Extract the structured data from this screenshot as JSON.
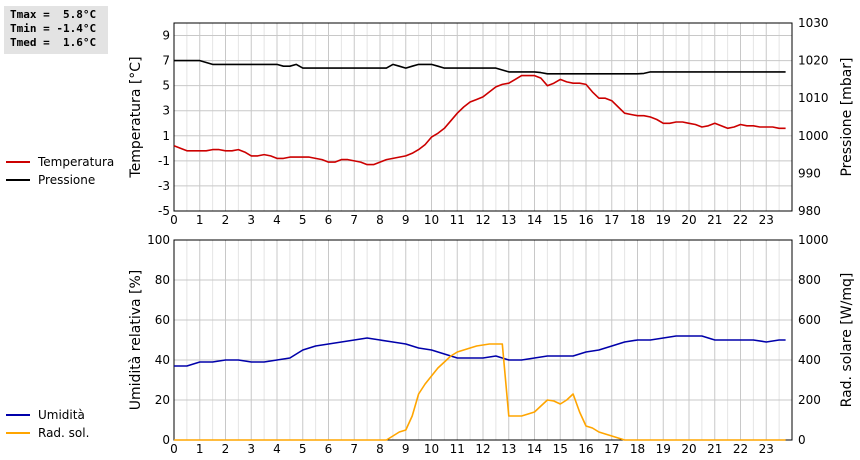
{
  "stats": {
    "tmax": "Tmax =  5.8°C",
    "tmin": "Tmin = -1.4°C",
    "tmed": "Tmed =  1.6°C"
  },
  "legend_top": [
    {
      "label": "Temperatura",
      "color": "#cc0000"
    },
    {
      "label": "Pressione",
      "color": "#000000"
    }
  ],
  "legend_bottom": [
    {
      "label": "Umidità",
      "color": "#0000aa"
    },
    {
      "label": "Rad. sol.",
      "color": "#ffa500"
    }
  ],
  "chart_data": [
    {
      "type": "line",
      "ylabel": "Temperatura [°C]",
      "y2label": "Pressione [mbar]",
      "xlim": [
        0,
        24
      ],
      "ylim": [
        -5,
        10
      ],
      "y2lim": [
        980,
        1030
      ],
      "x_ticks": [
        "0",
        "1",
        "2",
        "3",
        "4",
        "5",
        "6",
        "7",
        "8",
        "9",
        "10",
        "11",
        "12",
        "13",
        "14",
        "15",
        "16",
        "17",
        "18",
        "19",
        "20",
        "21",
        "22",
        "23"
      ],
      "y_ticks": [
        "-5",
        "-3",
        "-1",
        "1",
        "3",
        "5",
        "7",
        "9"
      ],
      "y2_ticks": [
        "980",
        "990",
        "1000",
        "1010",
        "1020",
        "1030"
      ],
      "grid": true,
      "series": [
        {
          "name": "Temperatura",
          "axis": "left",
          "color": "#cc0000",
          "x": [
            0,
            0.25,
            0.5,
            0.75,
            1,
            1.25,
            1.5,
            1.75,
            2,
            2.25,
            2.5,
            2.75,
            3,
            3.25,
            3.5,
            3.75,
            4,
            4.25,
            4.5,
            4.75,
            5,
            5.25,
            5.5,
            5.75,
            6,
            6.25,
            6.5,
            6.75,
            7,
            7.25,
            7.5,
            7.75,
            8,
            8.25,
            8.5,
            8.75,
            9,
            9.25,
            9.5,
            9.75,
            10,
            10.25,
            10.5,
            10.75,
            11,
            11.25,
            11.5,
            11.75,
            12,
            12.25,
            12.5,
            12.75,
            13,
            13.25,
            13.5,
            13.75,
            14,
            14.25,
            14.5,
            14.75,
            15,
            15.25,
            15.5,
            15.75,
            16,
            16.25,
            16.5,
            16.75,
            17,
            17.25,
            17.5,
            17.75,
            18,
            18.25,
            18.5,
            18.75,
            19,
            19.25,
            19.5,
            19.75,
            20,
            20.25,
            20.5,
            20.75,
            21,
            21.25,
            21.5,
            21.75,
            22,
            22.25,
            22.5,
            22.75,
            23,
            23.25,
            23.5,
            23.75
          ],
          "values": [
            0.2,
            0,
            -0.2,
            -0.2,
            -0.2,
            -0.2,
            -0.1,
            -0.1,
            -0.2,
            -0.2,
            -0.1,
            -0.3,
            -0.6,
            -0.6,
            -0.5,
            -0.6,
            -0.8,
            -0.8,
            -0.7,
            -0.7,
            -0.7,
            -0.7,
            -0.8,
            -0.9,
            -1.1,
            -1.1,
            -0.9,
            -0.9,
            -1,
            -1.1,
            -1.3,
            -1.3,
            -1.1,
            -0.9,
            -0.8,
            -0.7,
            -0.6,
            -0.4,
            -0.1,
            0.3,
            0.9,
            1.2,
            1.6,
            2.2,
            2.8,
            3.3,
            3.7,
            3.9,
            4.1,
            4.5,
            4.9,
            5.1,
            5.2,
            5.5,
            5.8,
            5.8,
            5.8,
            5.6,
            5,
            5.2,
            5.5,
            5.3,
            5.2,
            5.2,
            5.1,
            4.5,
            4,
            4,
            3.8,
            3.3,
            2.8,
            2.7,
            2.6,
            2.6,
            2.5,
            2.3,
            2,
            2,
            2.1,
            2.1,
            2,
            1.9,
            1.7,
            1.8,
            2,
            1.8,
            1.6,
            1.7,
            1.9,
            1.8,
            1.8,
            1.7,
            1.7,
            1.7,
            1.6,
            1.6
          ]
        },
        {
          "name": "Pressione",
          "axis": "right",
          "color": "#000000",
          "x": [
            0,
            1,
            1.25,
            1.5,
            2,
            3,
            3.5,
            4,
            4.25,
            4.5,
            4.75,
            5,
            6,
            7,
            8,
            8.25,
            8.5,
            8.75,
            9,
            9.25,
            9.5,
            10,
            10.25,
            10.5,
            11,
            12,
            12.25,
            12.5,
            13,
            13.25,
            13.5,
            14,
            14.25,
            14.5,
            15,
            16,
            17,
            18,
            18.25,
            18.5,
            19,
            20,
            21,
            22,
            23,
            23.75
          ],
          "values": [
            1020,
            1020,
            1019.5,
            1019,
            1019,
            1019,
            1019,
            1019,
            1018.5,
            1018.5,
            1019,
            1018,
            1018,
            1018,
            1018,
            1018,
            1019,
            1018.5,
            1018,
            1018.5,
            1019,
            1019,
            1018.5,
            1018,
            1018,
            1018,
            1018,
            1018,
            1017,
            1017,
            1017,
            1017,
            1016.8,
            1016.5,
            1016.5,
            1016.5,
            1016.5,
            1016.5,
            1016.6,
            1017,
            1017,
            1017,
            1017,
            1017,
            1017,
            1017
          ]
        }
      ]
    },
    {
      "type": "line",
      "ylabel": "Umidità relativa [%]",
      "y2label": "Rad. solare [W/mq]",
      "xlim": [
        0,
        24
      ],
      "ylim": [
        0,
        100
      ],
      "y2lim": [
        0,
        1000
      ],
      "x_ticks": [
        "0",
        "1",
        "2",
        "3",
        "4",
        "5",
        "6",
        "7",
        "8",
        "9",
        "10",
        "11",
        "12",
        "13",
        "14",
        "15",
        "16",
        "17",
        "18",
        "19",
        "20",
        "21",
        "22",
        "23"
      ],
      "y_ticks": [
        "0",
        "20",
        "40",
        "60",
        "80",
        "100"
      ],
      "y2_ticks": [
        "0",
        "200",
        "400",
        "600",
        "800",
        "1000"
      ],
      "grid": true,
      "series": [
        {
          "name": "Umidità",
          "axis": "left",
          "color": "#0000aa",
          "x": [
            0,
            0.5,
            1,
            1.5,
            2,
            2.5,
            3,
            3.5,
            4,
            4.5,
            5,
            5.5,
            6,
            6.5,
            7,
            7.5,
            8,
            8.5,
            9,
            9.5,
            10,
            10.5,
            11,
            11.5,
            12,
            12.5,
            13,
            13.5,
            14,
            14.5,
            15,
            15.5,
            16,
            16.5,
            17,
            17.5,
            18,
            18.5,
            19,
            19.5,
            20,
            20.5,
            21,
            21.5,
            22,
            22.5,
            23,
            23.5,
            23.75
          ],
          "values": [
            37,
            37,
            39,
            39,
            40,
            40,
            39,
            39,
            40,
            41,
            45,
            47,
            48,
            49,
            50,
            51,
            50,
            49,
            48,
            46,
            45,
            43,
            41,
            41,
            41,
            42,
            40,
            40,
            41,
            42,
            42,
            42,
            44,
            45,
            47,
            49,
            50,
            50,
            51,
            52,
            52,
            52,
            50,
            50,
            50,
            50,
            49,
            50,
            50
          ]
        },
        {
          "name": "Rad. sol.",
          "axis": "right",
          "color": "#ffa500",
          "x": [
            0,
            1,
            2,
            3,
            4,
            5,
            6,
            7,
            8,
            8.25,
            8.5,
            8.75,
            9,
            9.25,
            9.5,
            9.75,
            10,
            10.25,
            10.5,
            10.75,
            11,
            11.25,
            11.5,
            11.75,
            12,
            12.25,
            12.5,
            12.75,
            13,
            13.25,
            13.5,
            13.75,
            14,
            14.25,
            14.5,
            14.75,
            15,
            15.25,
            15.5,
            15.75,
            16,
            16.25,
            16.5,
            16.75,
            17,
            17.25,
            17.5,
            18,
            19,
            20,
            21,
            22,
            23,
            23.75
          ],
          "values": [
            0,
            0,
            0,
            0,
            0,
            0,
            0,
            0,
            0,
            0,
            20,
            40,
            50,
            120,
            230,
            280,
            320,
            360,
            390,
            420,
            440,
            450,
            460,
            470,
            475,
            480,
            480,
            480,
            120,
            120,
            120,
            130,
            140,
            170,
            200,
            195,
            180,
            200,
            230,
            140,
            70,
            60,
            40,
            30,
            20,
            10,
            0,
            0,
            0,
            0,
            0,
            0,
            0,
            0
          ]
        }
      ]
    }
  ]
}
